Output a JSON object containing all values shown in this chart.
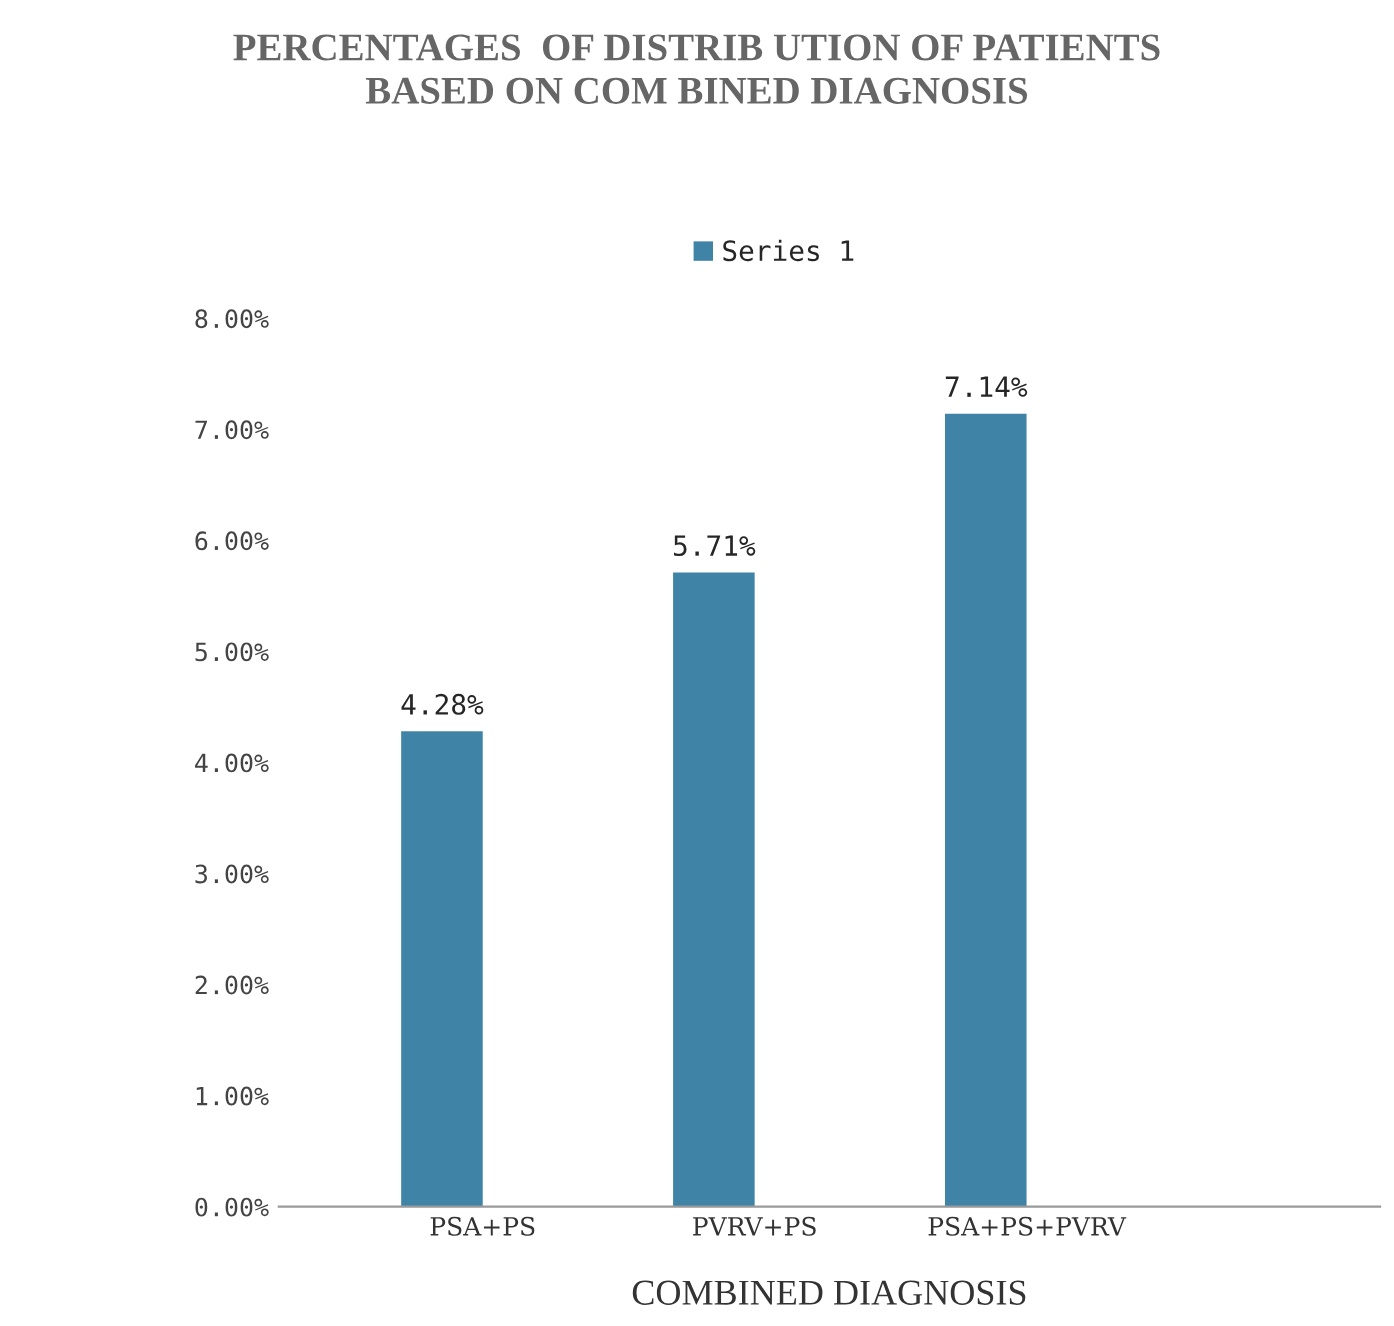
{
  "chart_data": {
    "type": "bar",
    "title": "PERCENTAGES  OF DISTRIB UTION OF PATIENTS\nBASED ON COM BINED DIAGNOSIS",
    "xlabel": "COMBINED DIAGNOSIS",
    "categories": [
      "PSA+PS",
      "PVRV+PS",
      "PSA+PS+PVRV"
    ],
    "series": [
      {
        "name": "Series 1",
        "color": "#3f84a6",
        "values": [
          4.28,
          5.71,
          7.14
        ],
        "value_labels": [
          "4.28%",
          "5.71%",
          "7.14%"
        ]
      }
    ],
    "ylim": [
      0,
      8
    ],
    "yticks": [
      {
        "value": 0,
        "label": "0.00%"
      },
      {
        "value": 1,
        "label": "1.00%"
      },
      {
        "value": 2,
        "label": "2.00%"
      },
      {
        "value": 3,
        "label": "3.00%"
      },
      {
        "value": 4,
        "label": "4.00%"
      },
      {
        "value": 5,
        "label": "5.00%"
      },
      {
        "value": 6,
        "label": "6.00%"
      },
      {
        "value": 7,
        "label": "7.00%"
      },
      {
        "value": 8,
        "label": "8.00%"
      }
    ],
    "legend": "top",
    "grid": false
  }
}
